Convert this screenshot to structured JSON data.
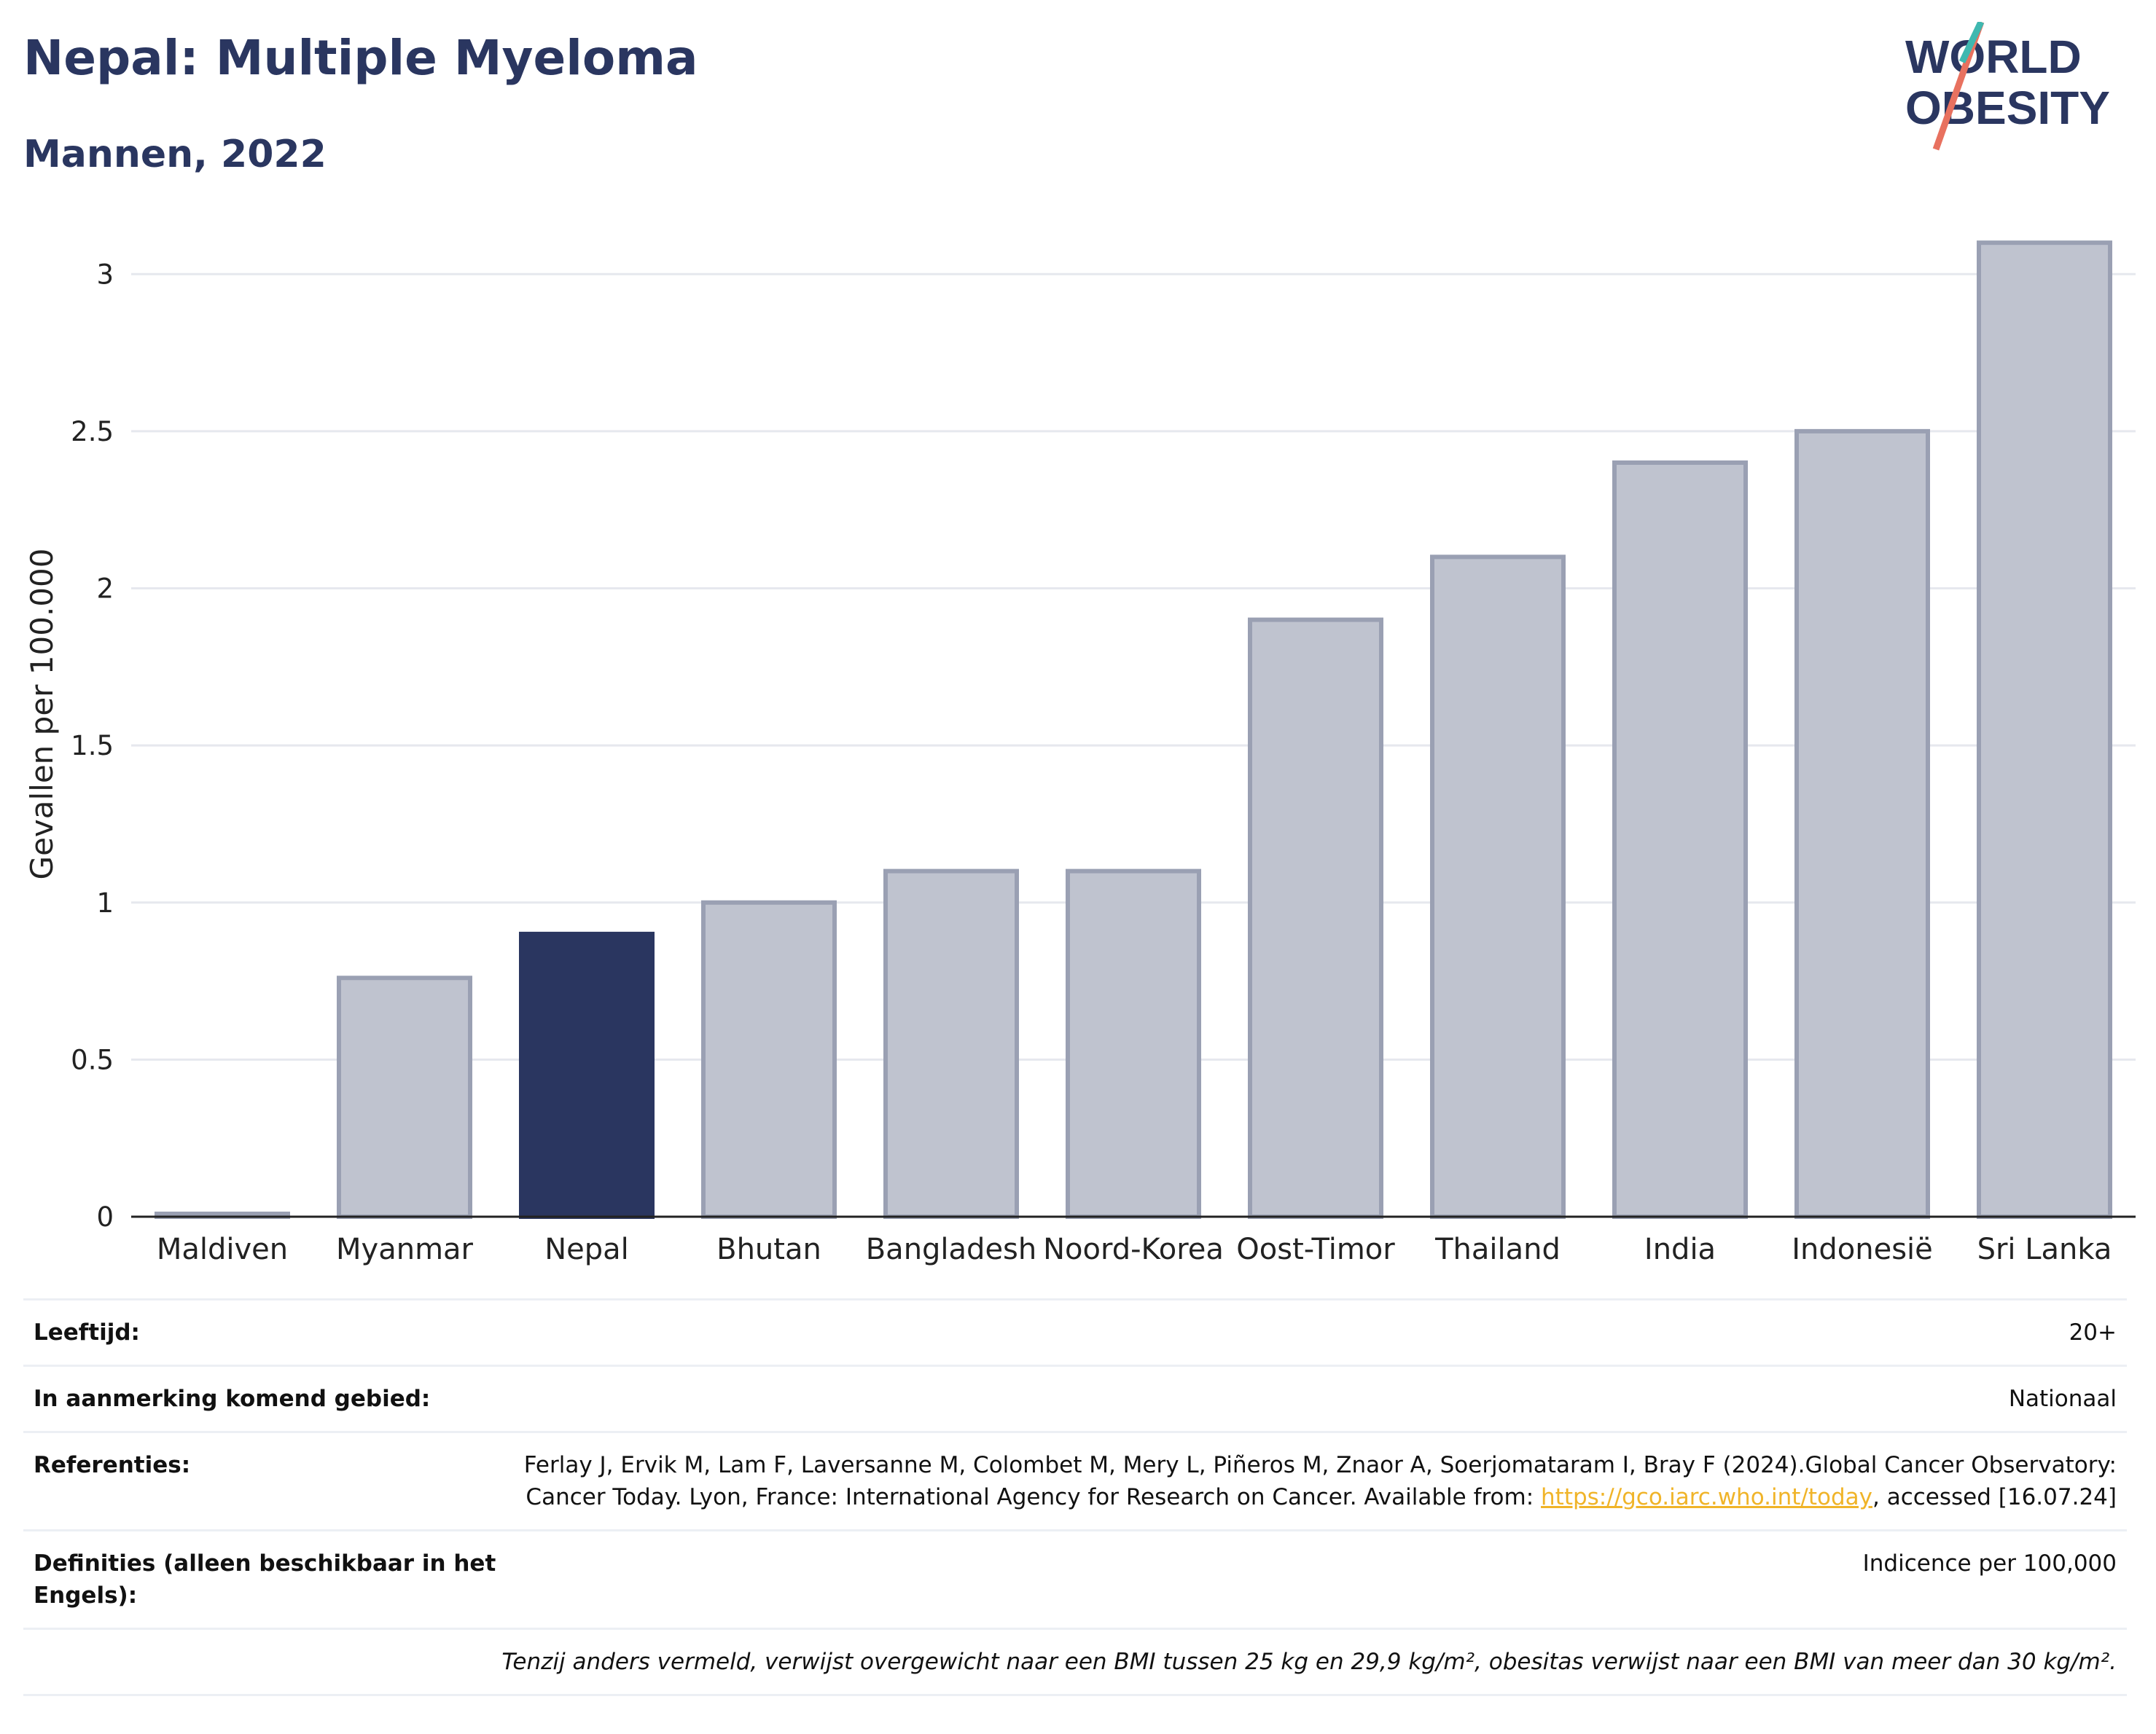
{
  "header": {
    "title": "Nepal: Multiple Myeloma",
    "subtitle": "Mannen, 2022"
  },
  "logo": {
    "line1": "WORLD",
    "line2": "OBESITY"
  },
  "chart_data": {
    "type": "bar",
    "categories": [
      "Maldiven",
      "Myanmar",
      "Nepal",
      "Bhutan",
      "Bangladesh",
      "Noord-Korea",
      "Oost-Timor",
      "Thailand",
      "India",
      "Indonesië",
      "Sri Lanka"
    ],
    "values": [
      0,
      0.76,
      0.9,
      1.0,
      1.1,
      1.1,
      1.9,
      2.1,
      2.4,
      2.5,
      3.1
    ],
    "highlight": "Nepal",
    "ylabel": "Gevallen per 100.000",
    "xlabel": "",
    "ylim": [
      0,
      3.2
    ],
    "yticks": [
      0,
      0.5,
      1,
      1.5,
      2,
      2.5,
      3
    ],
    "ytick_labels": [
      "0",
      "0.5",
      "1",
      "1.5",
      "2",
      "2.5",
      "3"
    ],
    "grid": true,
    "colors": {
      "highlight": "#2a3660",
      "other": "#bfc3cf",
      "other_border": "#9aa0b3"
    }
  },
  "info": {
    "rows": [
      {
        "key": "Leeftijd:",
        "value": "20+"
      },
      {
        "key": "In aanmerking komend gebied:",
        "value": "Nationaal"
      },
      {
        "key": "Referenties:",
        "value_pre": "Ferlay J, Ervik M, Lam F, Laversanne M, Colombet M, Mery L, Piñeros M, Znaor A, Soerjomataram I, Bray F (2024).Global Cancer Observatory: Cancer Today. Lyon, France: International Agency for Research on Cancer. Available from: ",
        "link": "https://gco.iarc.who.int/today",
        "value_post": ", accessed [16.07.24]"
      },
      {
        "key": "Definities (alleen beschikbaar in het Engels):",
        "value": "Indicence per 100,000"
      }
    ],
    "note": "Tenzij anders vermeld, verwijst overgewicht naar een BMI tussen 25 kg en 29,9 kg/m², obesitas verwijst naar een BMI van meer dan 30 kg/m²."
  }
}
